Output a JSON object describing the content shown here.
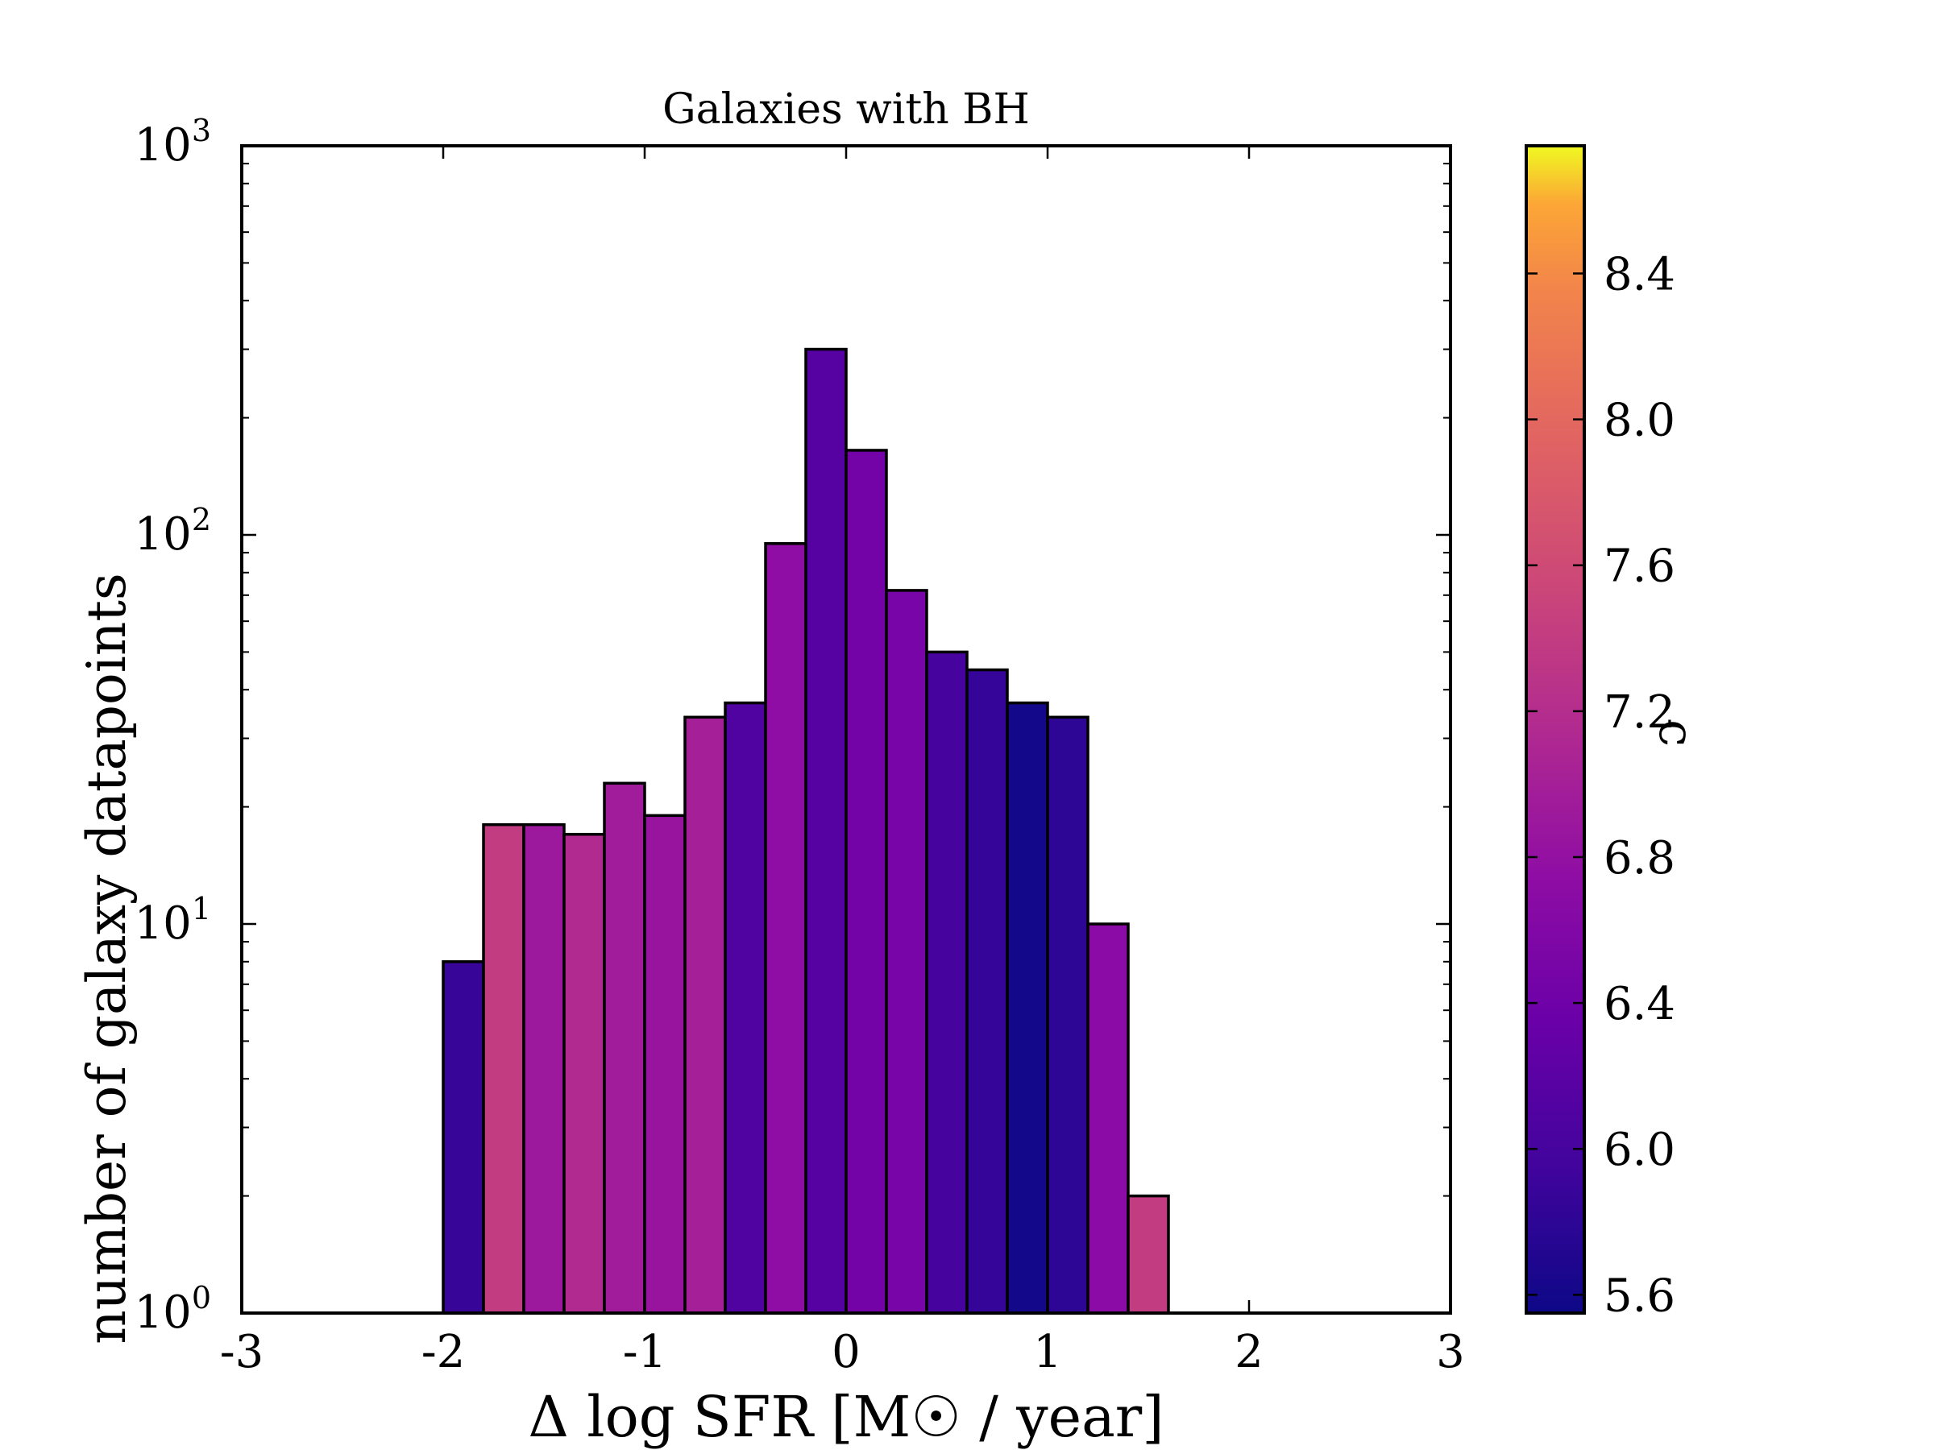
{
  "chart_data": {
    "type": "bar",
    "title": "Galaxies with BH",
    "xlabel": "Δ log SFR [M☉ / year]",
    "ylabel": "number of galaxy datapoints",
    "xlim": [
      -3,
      3
    ],
    "ylim": [
      1,
      1000
    ],
    "yscale": "log",
    "xticks": [
      -3,
      -2,
      -1,
      0,
      1,
      2,
      3
    ],
    "xtick_labels": [
      "-3",
      "-2",
      "-1",
      "0",
      "1",
      "2",
      "3"
    ],
    "ytick_exponents": [
      "0",
      "1",
      "2",
      "3"
    ],
    "bins": [
      {
        "x0": -2.0,
        "x1": -1.8,
        "count": 8,
        "c": 5.88
      },
      {
        "x0": -1.8,
        "x1": -1.6,
        "count": 18,
        "c": 7.4
      },
      {
        "x0": -1.6,
        "x1": -1.4,
        "count": 18,
        "c": 6.9
      },
      {
        "x0": -1.4,
        "x1": -1.2,
        "count": 17,
        "c": 7.15
      },
      {
        "x0": -1.2,
        "x1": -1.0,
        "count": 23,
        "c": 6.95
      },
      {
        "x0": -1.0,
        "x1": -0.8,
        "count": 19,
        "c": 6.85
      },
      {
        "x0": -0.8,
        "x1": -0.6,
        "count": 34,
        "c": 7.0
      },
      {
        "x0": -0.6,
        "x1": -0.4,
        "count": 37,
        "c": 6.1
      },
      {
        "x0": -0.4,
        "x1": -0.2,
        "count": 95,
        "c": 6.75
      },
      {
        "x0": -0.2,
        "x1": 0.0,
        "count": 300,
        "c": 6.15
      },
      {
        "x0": 0.0,
        "x1": 0.2,
        "count": 165,
        "c": 6.45
      },
      {
        "x0": 0.2,
        "x1": 0.4,
        "count": 72,
        "c": 6.5
      },
      {
        "x0": 0.4,
        "x1": 0.6,
        "count": 50,
        "c": 6.0
      },
      {
        "x0": 0.6,
        "x1": 0.8,
        "count": 45,
        "c": 5.85
      },
      {
        "x0": 0.8,
        "x1": 1.0,
        "count": 37,
        "c": 5.6
      },
      {
        "x0": 1.0,
        "x1": 1.2,
        "count": 34,
        "c": 5.8
      },
      {
        "x0": 1.2,
        "x1": 1.4,
        "count": 10,
        "c": 6.7
      },
      {
        "x0": 1.4,
        "x1": 1.6,
        "count": 2,
        "c": 7.4
      }
    ],
    "colorbar": {
      "cmap": "plasma",
      "range": [
        5.55,
        8.75
      ],
      "ticks": [
        5.6,
        6.0,
        6.4,
        6.8,
        7.2,
        7.6,
        8.0,
        8.4
      ],
      "tick_labels": [
        "5.6",
        "6.0",
        "6.4",
        "6.8",
        "7.2",
        "7.6",
        "8.0",
        "8.4"
      ],
      "label": "c"
    },
    "grid": false,
    "legend": "none"
  }
}
